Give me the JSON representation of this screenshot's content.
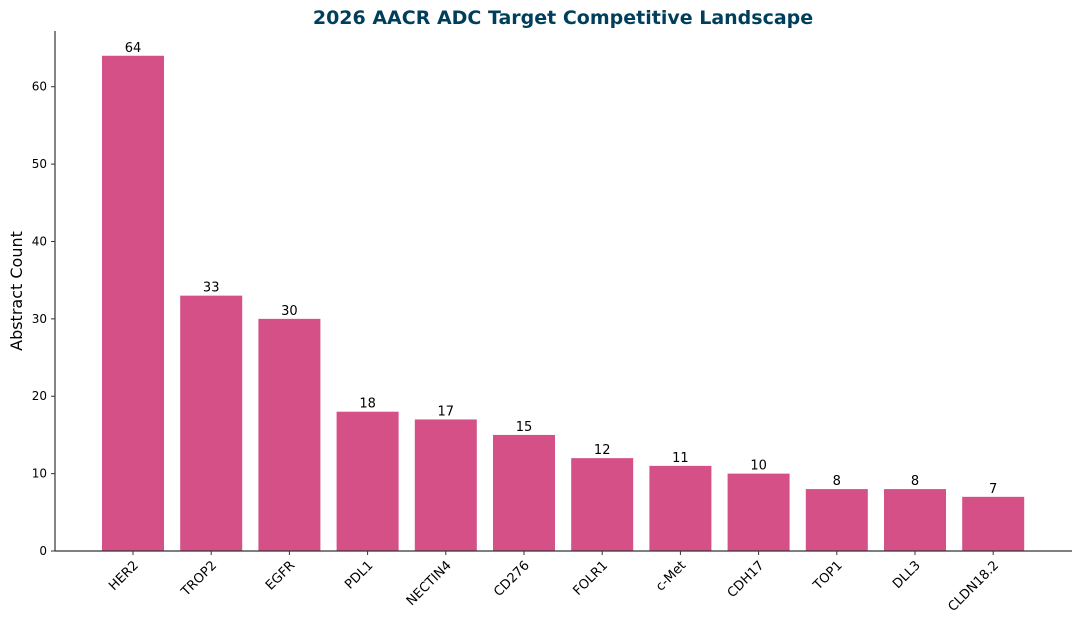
{
  "chart_data": {
    "type": "bar",
    "title": "2026 AACR ADC Target Competitive Landscape",
    "xlabel": "",
    "ylabel": "Abstract Count",
    "categories": [
      "HER2",
      "TROP2",
      "EGFR",
      "PDL1",
      "NECTIN4",
      "CD276",
      "FOLR1",
      "c-Met",
      "CDH17",
      "TOP1",
      "DLL3",
      "CLDN18.2"
    ],
    "values": [
      64,
      33,
      30,
      18,
      17,
      15,
      12,
      11,
      10,
      8,
      8,
      7
    ],
    "ylim": [
      0,
      67.2
    ],
    "yticks": [
      0,
      10,
      20,
      30,
      40,
      50,
      60
    ],
    "grid": false,
    "legend": "none",
    "data_labels": true
  },
  "colors": {
    "bar": "#d45087",
    "title": "#003f5c",
    "axis": "#333333",
    "text": "#000000"
  }
}
